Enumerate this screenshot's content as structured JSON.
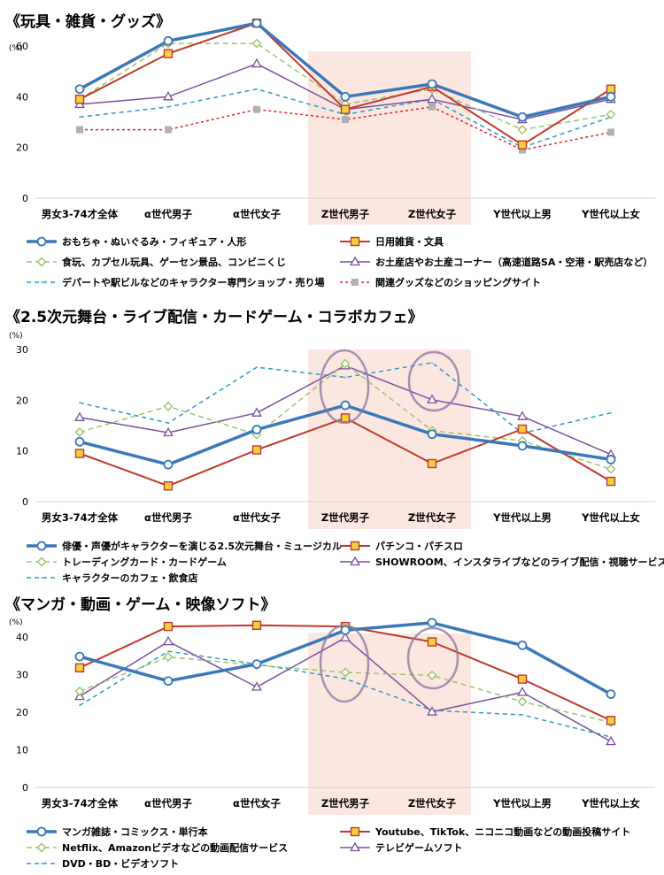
{
  "chart_data": [
    {
      "type": "line",
      "title": "《玩具・雑貨・グッズ》",
      "ylabel": "(%)",
      "ylim": [
        0,
        70
      ],
      "yticks": [
        0,
        20,
        40,
        60
      ],
      "grid": false,
      "highlighted_categories": [
        "Z世代男子",
        "Z世代女子"
      ],
      "categories": [
        "男女3-74才全体",
        "α世代男子",
        "α世代女子",
        "Z世代男子",
        "Z世代女子",
        "Y世代以上男",
        "Y世代以上女"
      ],
      "series": [
        {
          "name": "おもちゃ・ぬいぐるみ・フィギュア・人形",
          "color": "#3a78b8",
          "dash": "",
          "width": 3.5,
          "marker": "circle",
          "values": [
            43,
            62,
            69,
            40,
            45,
            32,
            40
          ]
        },
        {
          "name": "日用雑貨・文具",
          "color": "#c0392b",
          "dash": "",
          "width": 2,
          "marker": "square",
          "values": [
            39,
            57,
            69,
            35,
            44,
            21,
            43
          ]
        },
        {
          "name": "食玩、カプセル玩具、ゲーセン景品、コンビニくじ",
          "color": "#9cc36b",
          "dash": "6,4",
          "width": 1.5,
          "marker": "diamond",
          "values": [
            39,
            61,
            61,
            37,
            43,
            27,
            33
          ]
        },
        {
          "name": "お土産店やお土産コーナー（高速道路SA・空港・駅売店など）",
          "color": "#7b4fa0",
          "dash": "",
          "width": 1.5,
          "marker": "triangle",
          "values": [
            37,
            40,
            53,
            35,
            39,
            31,
            39
          ]
        },
        {
          "name": "デパートや駅ビルなどのキャラクター専門ショップ・売り場",
          "color": "#2a9bc8",
          "dash": "5,4",
          "width": 1.5,
          "marker": "none",
          "values": [
            32,
            36,
            43,
            33,
            39,
            20,
            32
          ]
        },
        {
          "name": "関連グッズなどのショッピングサイト",
          "color": "#e0262a",
          "dash": "3,3",
          "width": 1.5,
          "marker": "graysquare",
          "values": [
            27,
            27,
            35,
            31,
            36,
            19,
            26
          ]
        }
      ]
    },
    {
      "type": "line",
      "title": "《2.5次元舞台・ライブ配信・カードゲーム・コラボカフェ》",
      "ylabel": "(%)",
      "ylim": [
        0,
        30
      ],
      "yticks": [
        0,
        10,
        20,
        30
      ],
      "grid": false,
      "highlighted_categories": [
        "Z世代男子",
        "Z世代女子"
      ],
      "categories": [
        "男女3-74才全体",
        "α世代男子",
        "α世代女子",
        "Z世代男子",
        "Z世代女子",
        "Y世代以上男",
        "Y世代以上女"
      ],
      "series": [
        {
          "name": "俳優・声優がキャラクターを演じる2.5次元舞台・ミュージカル",
          "color": "#3a78b8",
          "dash": "",
          "width": 3.5,
          "marker": "circle",
          "values": [
            11.8,
            7.3,
            14.2,
            19,
            13.3,
            11,
            8.3
          ]
        },
        {
          "name": "パチンコ・パチスロ",
          "color": "#c0392b",
          "dash": "",
          "width": 2,
          "marker": "square",
          "values": [
            9.5,
            3.1,
            10.2,
            16.5,
            7.5,
            14.3,
            4
          ]
        },
        {
          "name": "トレーディングカード・カードゲーム",
          "color": "#9cc36b",
          "dash": "6,4",
          "width": 1.5,
          "marker": "diamond",
          "values": [
            13.7,
            18.8,
            13.2,
            27.2,
            14,
            12,
            6.4
          ]
        },
        {
          "name": "SHOWROOM、インスタライブなどのライブ配信・視聴サービス",
          "color": "#7b4fa0",
          "dash": "",
          "width": 1.5,
          "marker": "triangle",
          "values": [
            16.6,
            13.6,
            17.5,
            26.8,
            20.1,
            16.8,
            9.3
          ]
        },
        {
          "name": "キャラクターのカフェ・飲食店",
          "color": "#2a9bc8",
          "dash": "5,4",
          "width": 1.5,
          "marker": "none",
          "values": [
            19.5,
            15.5,
            26.5,
            24.5,
            27.4,
            13.5,
            17.5
          ]
        }
      ]
    },
    {
      "type": "line",
      "title": "《マンガ・動画・ゲーム・映像ソフト》",
      "ylabel": "(%)",
      "ylim": [
        0,
        46
      ],
      "yticks": [
        0,
        10,
        20,
        30,
        40
      ],
      "grid": false,
      "highlighted_categories": [
        "Z世代男子",
        "Z世代女子"
      ],
      "categories": [
        "男女3-74才全体",
        "α世代男子",
        "α世代女子",
        "Z世代男子",
        "Z世代女子",
        "Y世代以上男",
        "Y世代以上女"
      ],
      "series": [
        {
          "name": "マンガ雑誌・コミックス・単行本",
          "color": "#3a78b8",
          "dash": "",
          "width": 3.5,
          "marker": "circle",
          "values": [
            34.8,
            28.3,
            32.8,
            41.8,
            43.8,
            37.8,
            24.8
          ]
        },
        {
          "name": "Youtube、TikTok、ニコニコ動画などの動画投稿サイト",
          "color": "#c0392b",
          "dash": "",
          "width": 2,
          "marker": "square",
          "values": [
            31.8,
            42.8,
            43.1,
            42.8,
            38.7,
            28.8,
            17.8
          ]
        },
        {
          "name": "Netflix、Amazonビデオなどの動画配信サービス",
          "color": "#9cc36b",
          "dash": "6,4",
          "width": 1.5,
          "marker": "diamond",
          "values": [
            25.6,
            34.7,
            32.5,
            30.6,
            29.8,
            22.8,
            17.3
          ]
        },
        {
          "name": "テレビゲームソフト",
          "color": "#7b4fa0",
          "dash": "",
          "width": 1.5,
          "marker": "triangle",
          "values": [
            24.2,
            38.8,
            26.7,
            39.8,
            20.1,
            25.3,
            12.2
          ]
        },
        {
          "name": "DVD・BD・ビデオソフト",
          "color": "#2a9bc8",
          "dash": "5,4",
          "width": 1.5,
          "marker": "none",
          "values": [
            21.8,
            36.2,
            32.8,
            28.9,
            20.5,
            19.3,
            13.4
          ]
        }
      ]
    }
  ]
}
